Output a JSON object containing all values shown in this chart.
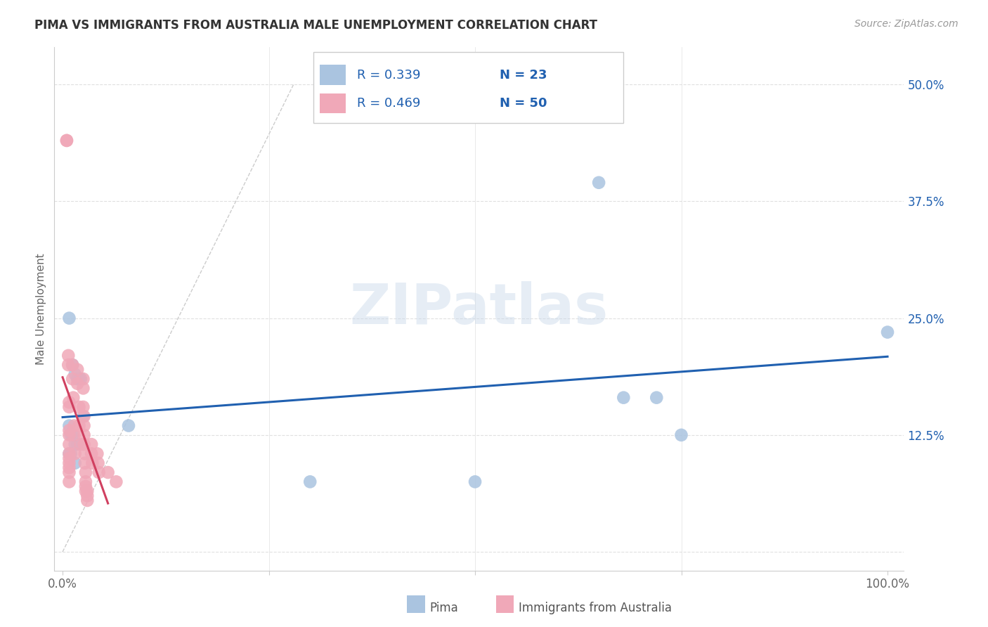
{
  "title": "PIMA VS IMMIGRANTS FROM AUSTRALIA MALE UNEMPLOYMENT CORRELATION CHART",
  "source": "Source: ZipAtlas.com",
  "ylabel": "Male Unemployment",
  "legend1_label": "Pima",
  "legend2_label": "Immigrants from Australia",
  "r1": "0.339",
  "n1": "23",
  "r2": "0.469",
  "n2": "50",
  "blue_scatter_x": [
    0.008,
    0.012,
    0.015,
    0.018,
    0.02,
    0.022,
    0.008,
    0.01,
    0.012,
    0.015,
    0.018,
    0.025,
    0.008,
    0.01,
    0.015,
    0.08,
    0.3,
    0.5,
    0.65,
    0.68,
    0.72,
    0.75,
    1.0
  ],
  "blue_scatter_y": [
    0.25,
    0.2,
    0.19,
    0.185,
    0.185,
    0.185,
    0.135,
    0.125,
    0.125,
    0.115,
    0.115,
    0.145,
    0.105,
    0.105,
    0.095,
    0.135,
    0.075,
    0.075,
    0.395,
    0.165,
    0.165,
    0.125,
    0.235
  ],
  "pink_scatter_x": [
    0.005,
    0.005,
    0.007,
    0.007,
    0.008,
    0.008,
    0.008,
    0.008,
    0.008,
    0.008,
    0.008,
    0.008,
    0.008,
    0.008,
    0.008,
    0.012,
    0.012,
    0.013,
    0.014,
    0.014,
    0.015,
    0.018,
    0.018,
    0.02,
    0.02,
    0.022,
    0.025,
    0.025,
    0.025,
    0.026,
    0.026,
    0.026,
    0.026,
    0.027,
    0.027,
    0.028,
    0.028,
    0.028,
    0.028,
    0.03,
    0.03,
    0.03,
    0.035,
    0.035,
    0.036,
    0.042,
    0.043,
    0.044,
    0.055,
    0.065
  ],
  "pink_scatter_y": [
    0.44,
    0.44,
    0.21,
    0.2,
    0.16,
    0.155,
    0.13,
    0.125,
    0.115,
    0.105,
    0.1,
    0.095,
    0.09,
    0.085,
    0.075,
    0.2,
    0.185,
    0.165,
    0.135,
    0.125,
    0.105,
    0.195,
    0.18,
    0.155,
    0.135,
    0.115,
    0.185,
    0.175,
    0.155,
    0.145,
    0.135,
    0.125,
    0.115,
    0.105,
    0.095,
    0.085,
    0.075,
    0.07,
    0.065,
    0.065,
    0.06,
    0.055,
    0.115,
    0.105,
    0.095,
    0.105,
    0.095,
    0.085,
    0.085,
    0.075
  ],
  "blue_color": "#aac4e0",
  "pink_color": "#f0a8b8",
  "blue_line_color": "#2060b0",
  "pink_line_color": "#d04060",
  "grid_color": "#e0e0e0",
  "bg_color": "#ffffff",
  "title_color": "#333333",
  "source_color": "#999999",
  "tick_color": "#2060b0",
  "ylabel_color": "#666666"
}
